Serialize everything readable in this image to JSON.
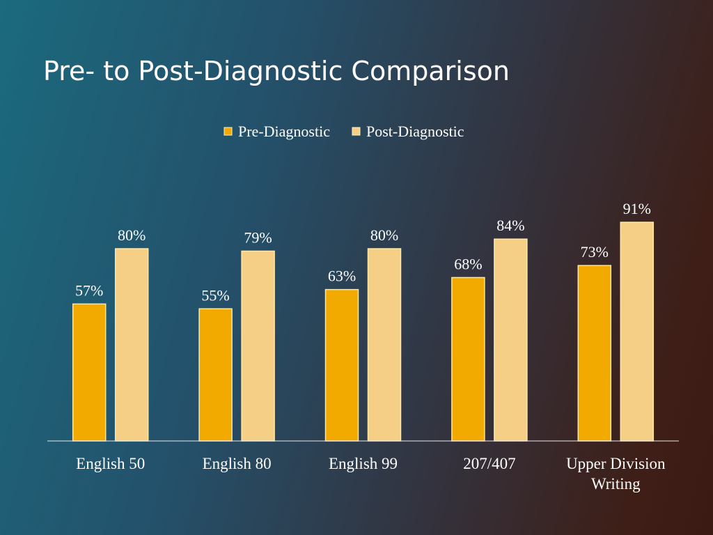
{
  "chart_data": {
    "type": "bar",
    "title": "Pre- to Post-Diagnostic Comparison",
    "categories": [
      "English 50",
      "English 80",
      "English 99",
      "207/407",
      "Upper Division Writing"
    ],
    "series": [
      {
        "name": "Pre-Diagnostic",
        "color": "#f2a900",
        "values": [
          57,
          55,
          63,
          68,
          73
        ],
        "value_labels": [
          "57%",
          "55%",
          "63%",
          "68%",
          "73%"
        ]
      },
      {
        "name": "Post-Diagnostic",
        "color": "#f5cf85",
        "values": [
          80,
          79,
          80,
          84,
          91
        ],
        "value_labels": [
          "80%",
          "79%",
          "80%",
          "84%",
          "91%"
        ]
      }
    ],
    "ylim": [
      0,
      100
    ],
    "legend": "top"
  }
}
